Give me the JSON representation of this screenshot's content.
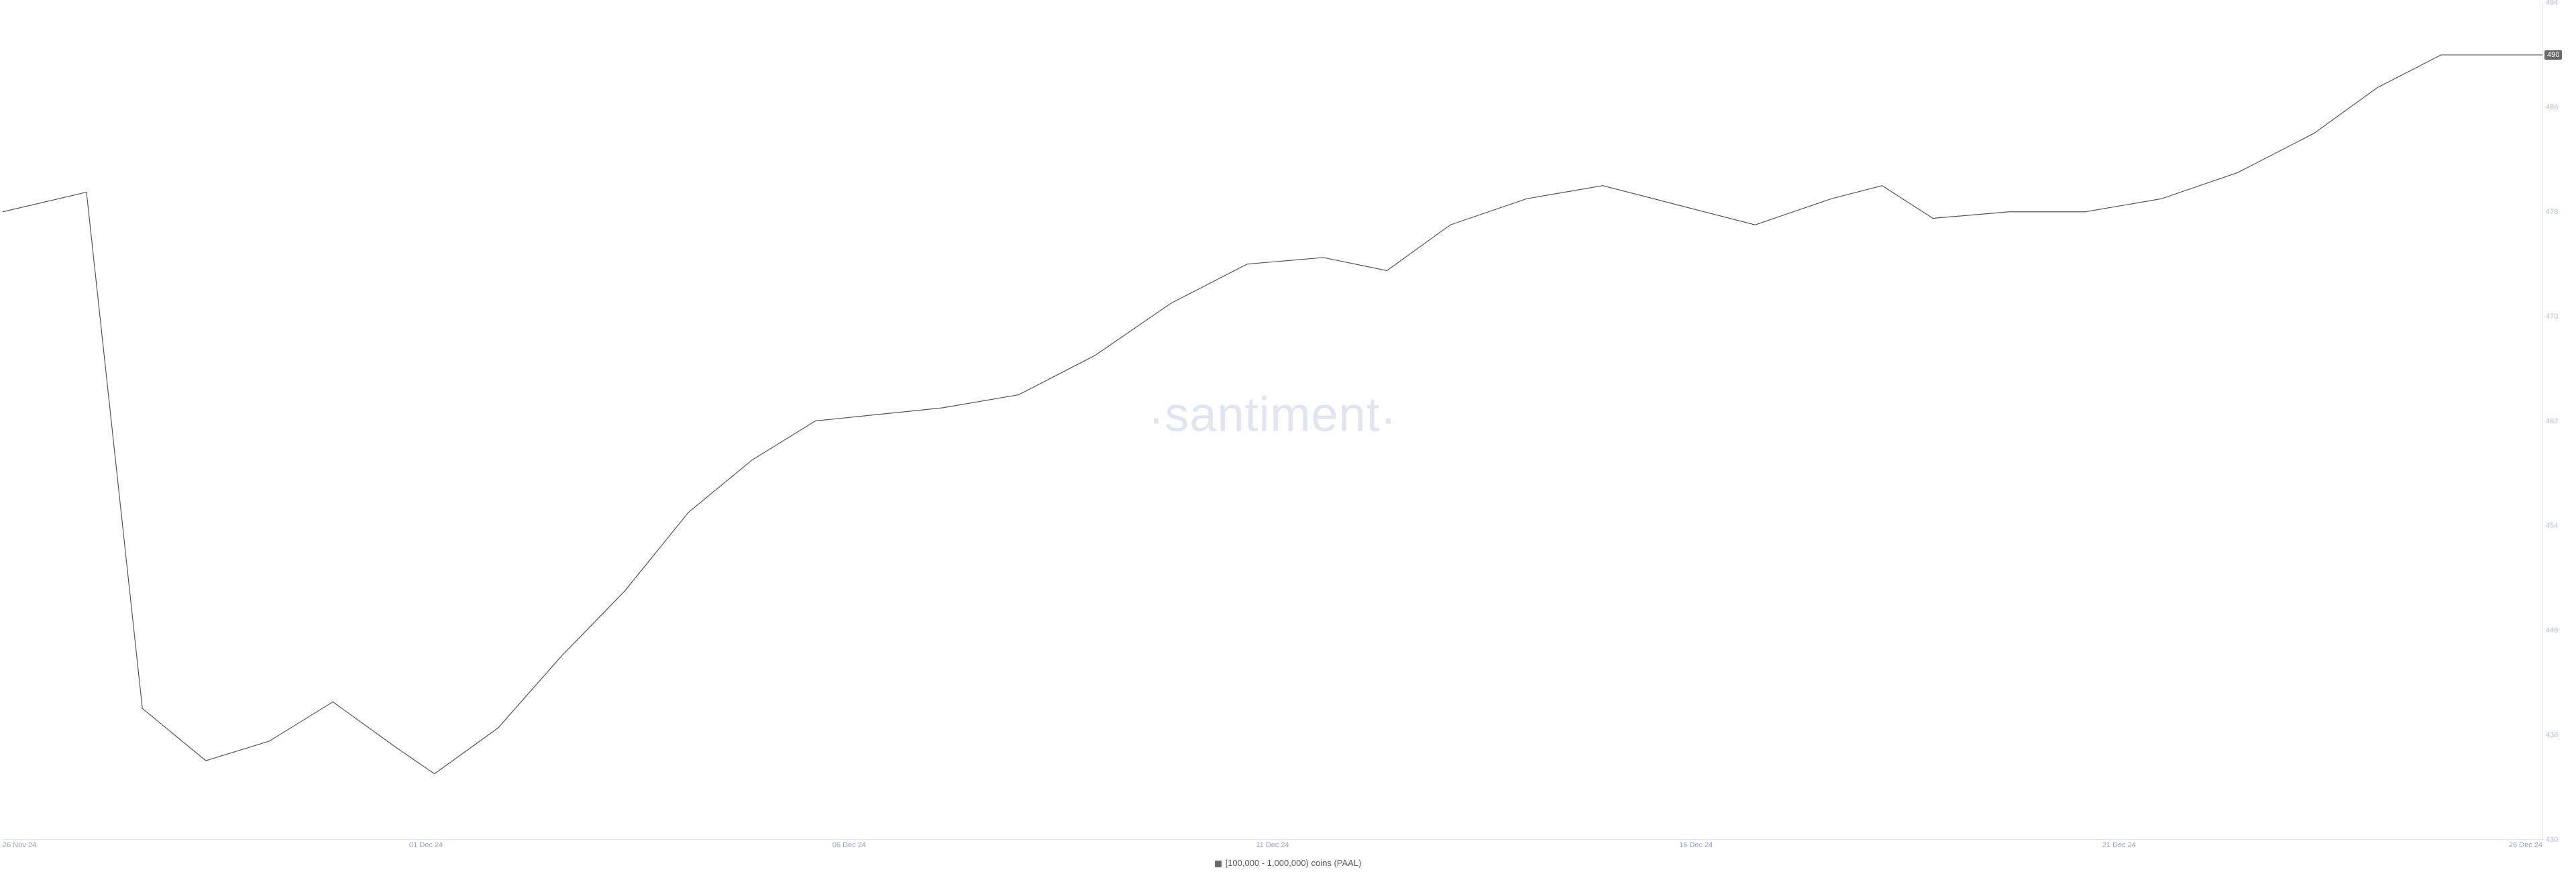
{
  "chart": {
    "type": "line",
    "watermark": "santiment",
    "background_color": "#ffffff",
    "line_color": "#555555",
    "line_width": 1.2,
    "axis_label_color": "#9aa0c8",
    "y_tick_color": "#b8bcd4",
    "grid_color": "#e5e5e5",
    "watermark_color": "#e2e4f0",
    "watermark_fontsize": 72,
    "tick_fontsize": 11,
    "legend_fontsize": 13,
    "y_axis": {
      "min": 430,
      "max": 494,
      "ticks": [
        430,
        438,
        446,
        454,
        462,
        470,
        478,
        486,
        494
      ]
    },
    "x_axis": {
      "ticks": [
        {
          "label": "26 Nov 24",
          "pos": 0.0
        },
        {
          "label": "01 Dec 24",
          "pos": 0.1667
        },
        {
          "label": "06 Dec 24",
          "pos": 0.3333
        },
        {
          "label": "11 Dec 24",
          "pos": 0.5
        },
        {
          "label": "16 Dec 24",
          "pos": 0.6667
        },
        {
          "label": "21 Dec 24",
          "pos": 0.8333
        },
        {
          "label": "26 Dec 24",
          "pos": 1.0
        }
      ]
    },
    "series": {
      "name": "[100,000  - 1,000,000) coins (PAAL)",
      "swatch_color": "#6a6a6a",
      "current_value_label": "490",
      "badge_bg": "#6a6a6a",
      "badge_fg": "#ffffff",
      "points": [
        {
          "x": 0.0,
          "y": 478.0
        },
        {
          "x": 0.033,
          "y": 479.5
        },
        {
          "x": 0.055,
          "y": 440.0
        },
        {
          "x": 0.08,
          "y": 436.0
        },
        {
          "x": 0.105,
          "y": 437.5
        },
        {
          "x": 0.13,
          "y": 440.5
        },
        {
          "x": 0.155,
          "y": 437.0
        },
        {
          "x": 0.17,
          "y": 435.0
        },
        {
          "x": 0.195,
          "y": 438.5
        },
        {
          "x": 0.22,
          "y": 444.0
        },
        {
          "x": 0.245,
          "y": 449.0
        },
        {
          "x": 0.27,
          "y": 455.0
        },
        {
          "x": 0.295,
          "y": 459.0
        },
        {
          "x": 0.32,
          "y": 462.0
        },
        {
          "x": 0.345,
          "y": 462.5
        },
        {
          "x": 0.37,
          "y": 463.0
        },
        {
          "x": 0.4,
          "y": 464.0
        },
        {
          "x": 0.43,
          "y": 467.0
        },
        {
          "x": 0.46,
          "y": 471.0
        },
        {
          "x": 0.49,
          "y": 474.0
        },
        {
          "x": 0.52,
          "y": 474.5
        },
        {
          "x": 0.545,
          "y": 473.5
        },
        {
          "x": 0.57,
          "y": 477.0
        },
        {
          "x": 0.6,
          "y": 479.0
        },
        {
          "x": 0.63,
          "y": 480.0
        },
        {
          "x": 0.66,
          "y": 478.5
        },
        {
          "x": 0.69,
          "y": 477.0
        },
        {
          "x": 0.72,
          "y": 479.0
        },
        {
          "x": 0.74,
          "y": 480.0
        },
        {
          "x": 0.76,
          "y": 477.5
        },
        {
          "x": 0.79,
          "y": 478.0
        },
        {
          "x": 0.82,
          "y": 478.0
        },
        {
          "x": 0.85,
          "y": 479.0
        },
        {
          "x": 0.88,
          "y": 481.0
        },
        {
          "x": 0.91,
          "y": 484.0
        },
        {
          "x": 0.935,
          "y": 487.5
        },
        {
          "x": 0.96,
          "y": 490.0
        },
        {
          "x": 1.0,
          "y": 490.0
        }
      ]
    }
  }
}
